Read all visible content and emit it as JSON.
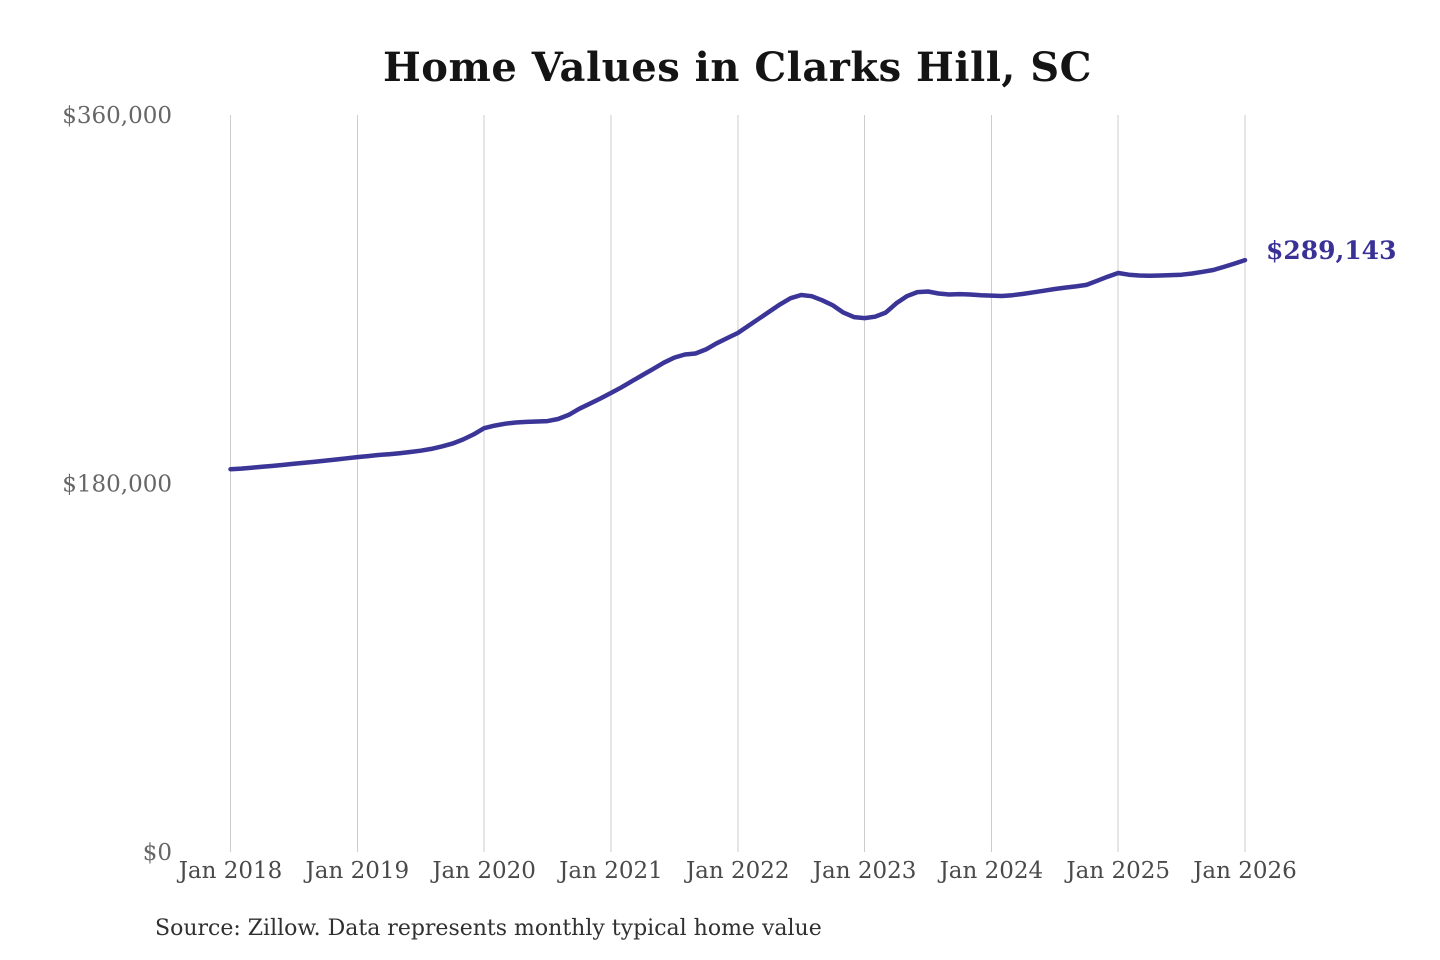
{
  "page": {
    "title": "Home Values in Clarks Hill, SC",
    "end_value_label": "$289,143",
    "source_note": "Source: Zillow. Data represents monthly typical home value"
  },
  "colors": {
    "line": "#3b3597",
    "end_label": "#3a3197",
    "gridline": "#cdcdcd",
    "axis_label": "#666666",
    "x_axis_label": "#4a4a4a",
    "title": "#141414",
    "source": "#303030",
    "background": "#ffffff"
  },
  "chart_data": {
    "type": "line",
    "title": "Home Values in Clarks Hill, SC",
    "xlabel": "",
    "ylabel": "",
    "x_tick_labels": [
      "Jan 2018",
      "Jan 2019",
      "Jan 2020",
      "Jan 2021",
      "Jan 2022",
      "Jan 2023",
      "Jan 2024",
      "Jan 2025",
      "Jan 2026"
    ],
    "y_tick_labels": [
      "$0",
      "$180,000",
      "$360,000"
    ],
    "y_tick_values": [
      0,
      180000,
      360000
    ],
    "ylim": [
      0,
      360000
    ],
    "grid": "vertical-only",
    "legend": "none",
    "frequency": "monthly",
    "x_range": [
      "Jan 2018",
      "Jan 2026"
    ],
    "end_annotation": {
      "text": "$289,143",
      "value": 289143
    },
    "source_note": "Source: Zillow. Data represents monthly typical home value",
    "series": [
      {
        "name": "Typical home value",
        "color": "#3b3597",
        "values": [
          187000,
          187300,
          187700,
          188200,
          188600,
          189100,
          189600,
          190100,
          190600,
          191200,
          191700,
          192300,
          192900,
          193400,
          193900,
          194300,
          194800,
          195400,
          196000,
          196900,
          198100,
          199500,
          201500,
          204000,
          207000,
          208300,
          209200,
          209800,
          210100,
          210300,
          210500,
          211500,
          213500,
          216500,
          219000,
          221500,
          224200,
          227000,
          230000,
          233000,
          236000,
          239000,
          241500,
          243000,
          243500,
          245500,
          248500,
          251000,
          253500,
          257000,
          260500,
          264000,
          267500,
          270500,
          272100,
          271500,
          269500,
          267000,
          263500,
          261300,
          260800,
          261500,
          263500,
          268000,
          271500,
          273500,
          273800,
          272800,
          272300,
          272500,
          272300,
          272000,
          271800,
          271600,
          272000,
          272600,
          273400,
          274200,
          275000,
          275700,
          276300,
          277000,
          279000,
          281000,
          282800,
          282000,
          281600,
          281500,
          281600,
          281800,
          282000,
          282600,
          283400,
          284300,
          285800,
          287400,
          289143
        ]
      }
    ]
  }
}
